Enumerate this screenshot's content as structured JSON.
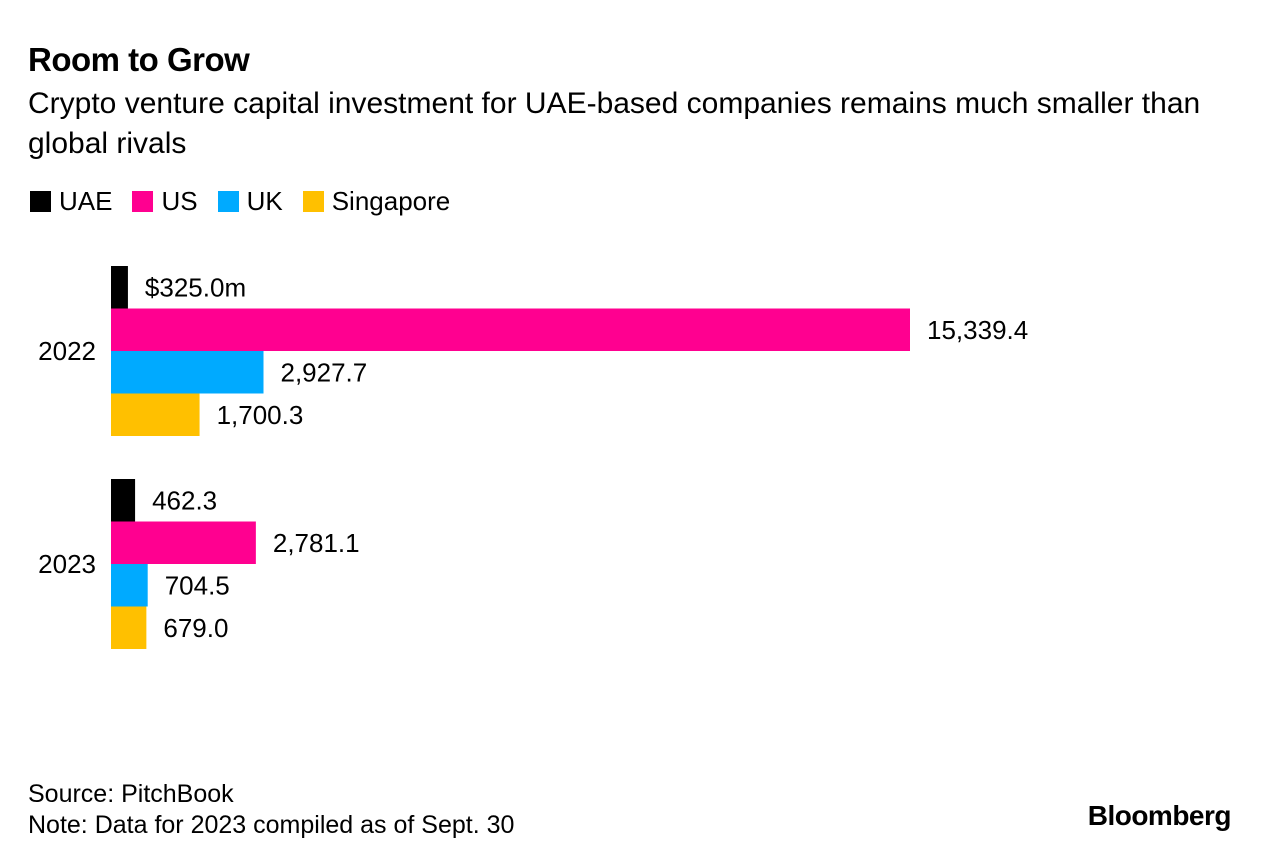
{
  "title": "Room to Grow",
  "subtitle": "Crypto venture capital investment for UAE-based companies remains much smaller than global rivals",
  "legend": [
    {
      "label": "UAE",
      "color": "#000000"
    },
    {
      "label": "US",
      "color": "#ff0090"
    },
    {
      "label": "UK",
      "color": "#00aaff"
    },
    {
      "label": "Singapore",
      "color": "#ffc000"
    }
  ],
  "chart_data": {
    "type": "bar",
    "orientation": "horizontal",
    "categories": [
      "2022",
      "2023"
    ],
    "series": [
      {
        "name": "UAE",
        "color": "#000000",
        "values": [
          325.0,
          462.3
        ],
        "labels": [
          "$325.0m",
          "462.3"
        ]
      },
      {
        "name": "US",
        "color": "#ff0090",
        "values": [
          15339.4,
          2781.1
        ],
        "labels": [
          "15,339.4",
          "2,781.1"
        ]
      },
      {
        "name": "UK",
        "color": "#00aaff",
        "values": [
          2927.7,
          704.5
        ],
        "labels": [
          "2,927.7",
          "704.5"
        ]
      },
      {
        "name": "Singapore",
        "color": "#ffc000",
        "values": [
          1700.3,
          679.0
        ],
        "labels": [
          "1,700.3",
          "679.0"
        ]
      }
    ],
    "xlim": [
      0,
      15339.4
    ],
    "grid": false,
    "legend_position": "top-left"
  },
  "footer": {
    "source": "Source: PitchBook",
    "note": "Note: Data for 2023 compiled as of Sept. 30",
    "logo": "Bloomberg"
  }
}
